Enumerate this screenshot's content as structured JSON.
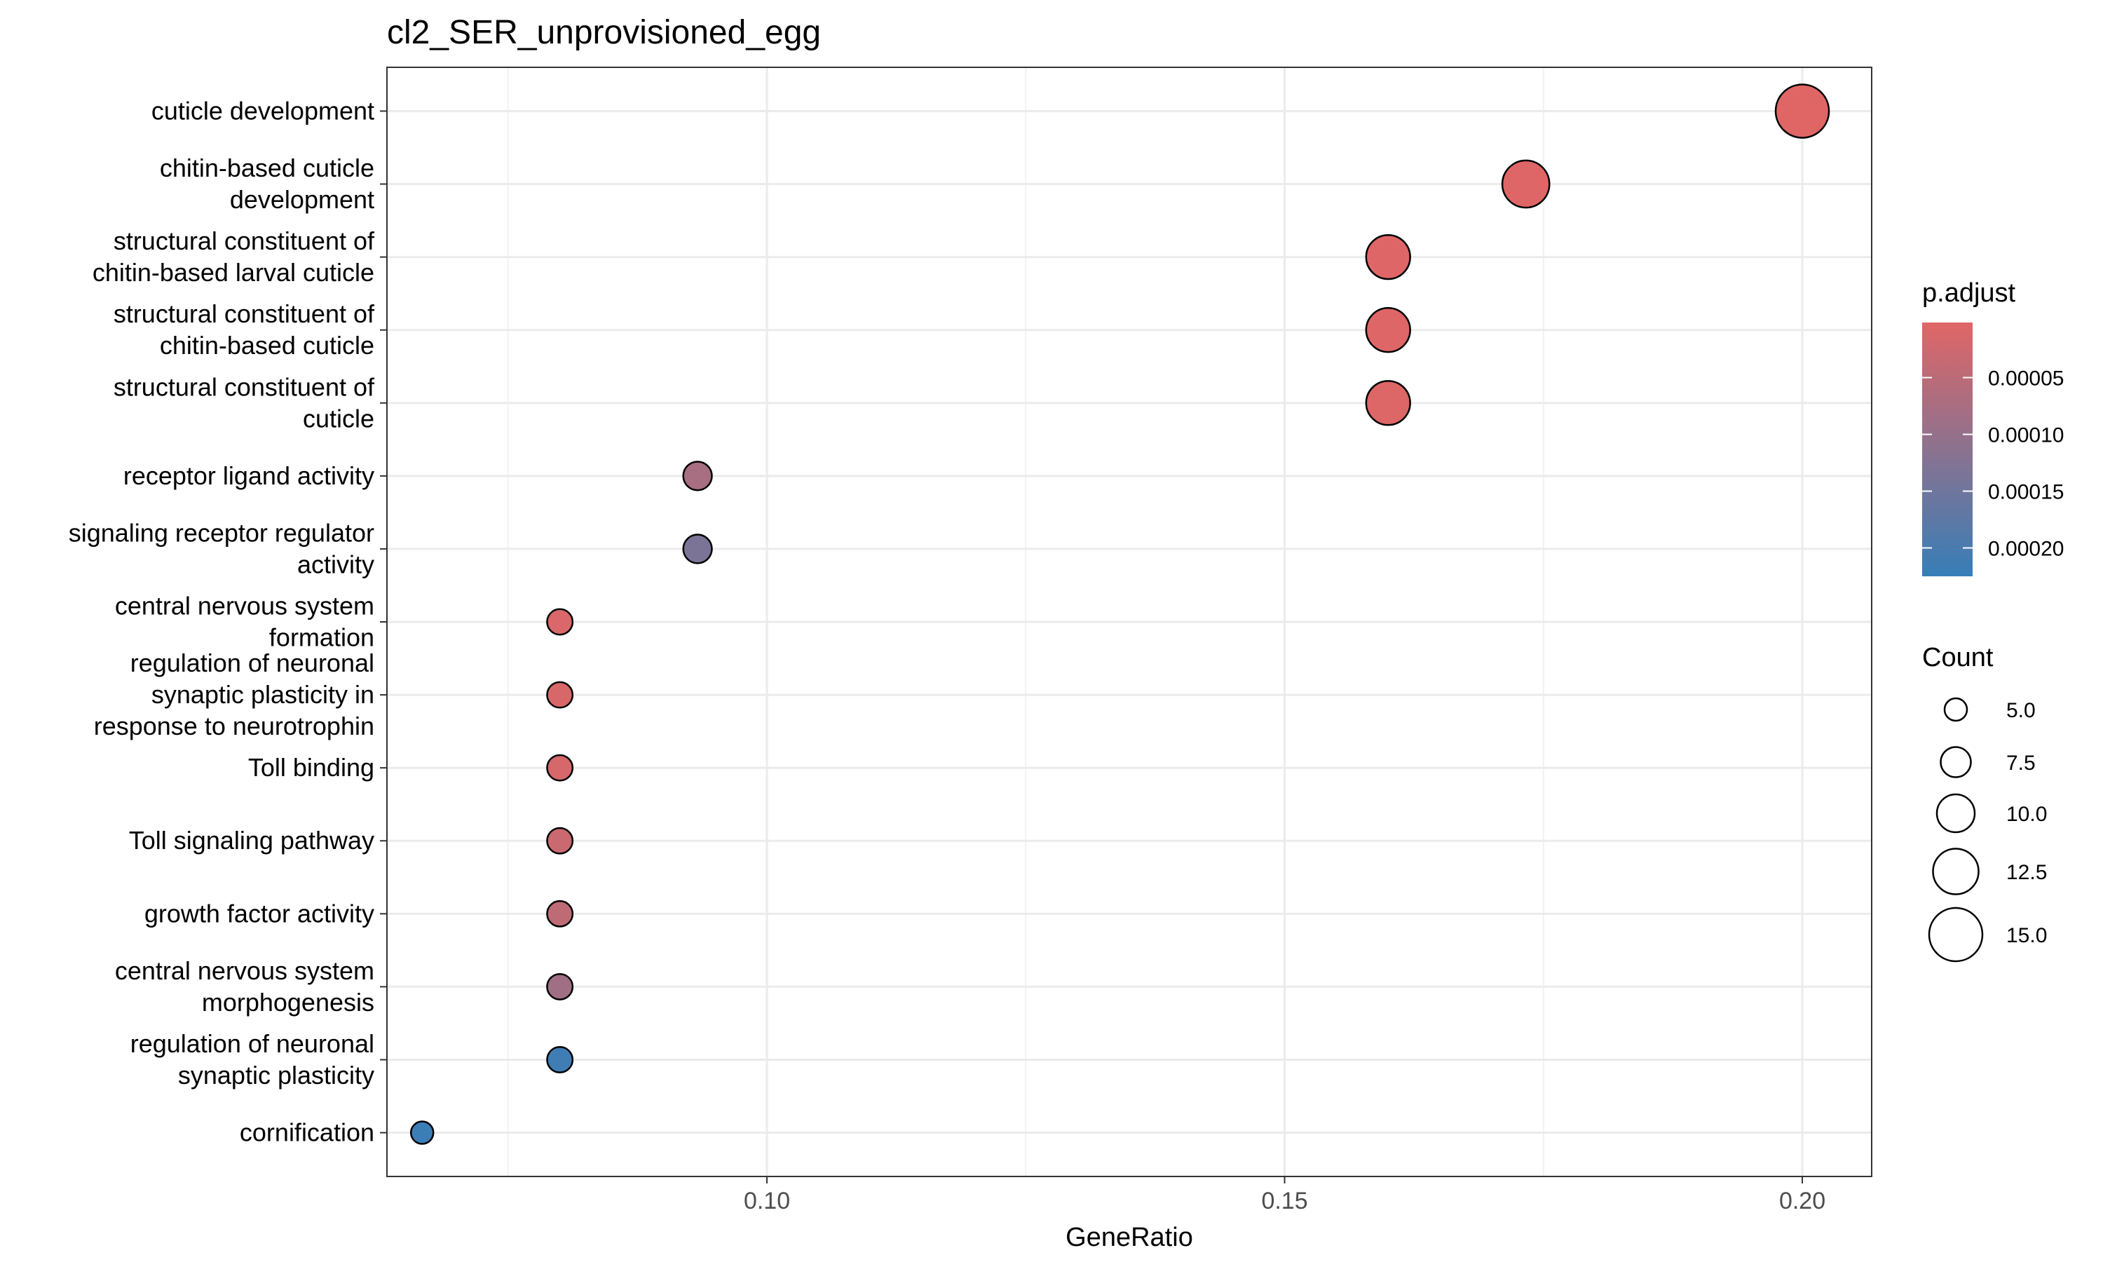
{
  "chart_data": {
    "type": "scatter",
    "title": "cl2_SER_unprovisioned_egg",
    "xlabel": "GeneRatio",
    "ylabel": "",
    "xlim": [
      0.0633,
      0.2067
    ],
    "xticks": [
      0.1,
      0.15,
      0.2
    ],
    "xtick_labels": [
      "0.10",
      "0.15",
      "0.20"
    ],
    "grid": true,
    "points": [
      {
        "term": "cuticle development",
        "gene_ratio": 0.2,
        "count": 15,
        "p_adjust": 2e-06
      },
      {
        "term": "chitin-based cuticle\ndevelopment",
        "gene_ratio": 0.1733,
        "count": 13,
        "p_adjust": 3e-06
      },
      {
        "term": "structural constituent of\nchitin-based larval cuticle",
        "gene_ratio": 0.16,
        "count": 12,
        "p_adjust": 3e-06
      },
      {
        "term": "structural constituent of\nchitin-based cuticle",
        "gene_ratio": 0.16,
        "count": 12,
        "p_adjust": 4e-06
      },
      {
        "term": "structural constituent of\ncuticle",
        "gene_ratio": 0.16,
        "count": 12,
        "p_adjust": 5e-06
      },
      {
        "term": "receptor ligand activity",
        "gene_ratio": 0.0933,
        "count": 7,
        "p_adjust": 7.5e-05
      },
      {
        "term": "signaling receptor regulator\nactivity",
        "gene_ratio": 0.0933,
        "count": 7,
        "p_adjust": 0.000135
      },
      {
        "term": "central nervous system\nformation",
        "gene_ratio": 0.08,
        "count": 6,
        "p_adjust": 1e-05
      },
      {
        "term": "regulation of neuronal\nsynaptic plasticity in\nresponse to neurotrophin",
        "gene_ratio": 0.08,
        "count": 6,
        "p_adjust": 1.2e-05
      },
      {
        "term": "Toll binding",
        "gene_ratio": 0.08,
        "count": 6,
        "p_adjust": 1.5e-05
      },
      {
        "term": "Toll signaling pathway",
        "gene_ratio": 0.08,
        "count": 6,
        "p_adjust": 3e-05
      },
      {
        "term": "growth factor activity",
        "gene_ratio": 0.08,
        "count": 6,
        "p_adjust": 4.5e-05
      },
      {
        "term": "central nervous system\nmorphogenesis",
        "gene_ratio": 0.08,
        "count": 6,
        "p_adjust": 8.5e-05
      },
      {
        "term": "regulation of neuronal\nsynaptic plasticity",
        "gene_ratio": 0.08,
        "count": 6,
        "p_adjust": 0.000215
      },
      {
        "term": "cornification",
        "gene_ratio": 0.0667,
        "count": 5,
        "p_adjust": 0.00022
      }
    ],
    "color_legend": {
      "title": "p.adjust",
      "breaks": [
        5e-05,
        0.0001,
        0.00015,
        0.0002
      ],
      "labels": [
        "0.00005",
        "0.00010",
        "0.00015",
        "0.00020"
      ],
      "domain": [
        1.5e-06,
        0.000225
      ],
      "low_color": "#E06666",
      "high_color": "#377EB8"
    },
    "size_legend": {
      "title": "Count",
      "breaks": [
        5.0,
        7.5,
        10.0,
        12.5,
        15.0
      ],
      "labels": [
        "5.0",
        "7.5",
        "10.0",
        "12.5",
        "15.0"
      ],
      "domain": [
        5,
        15
      ]
    },
    "legend_position": "right"
  }
}
